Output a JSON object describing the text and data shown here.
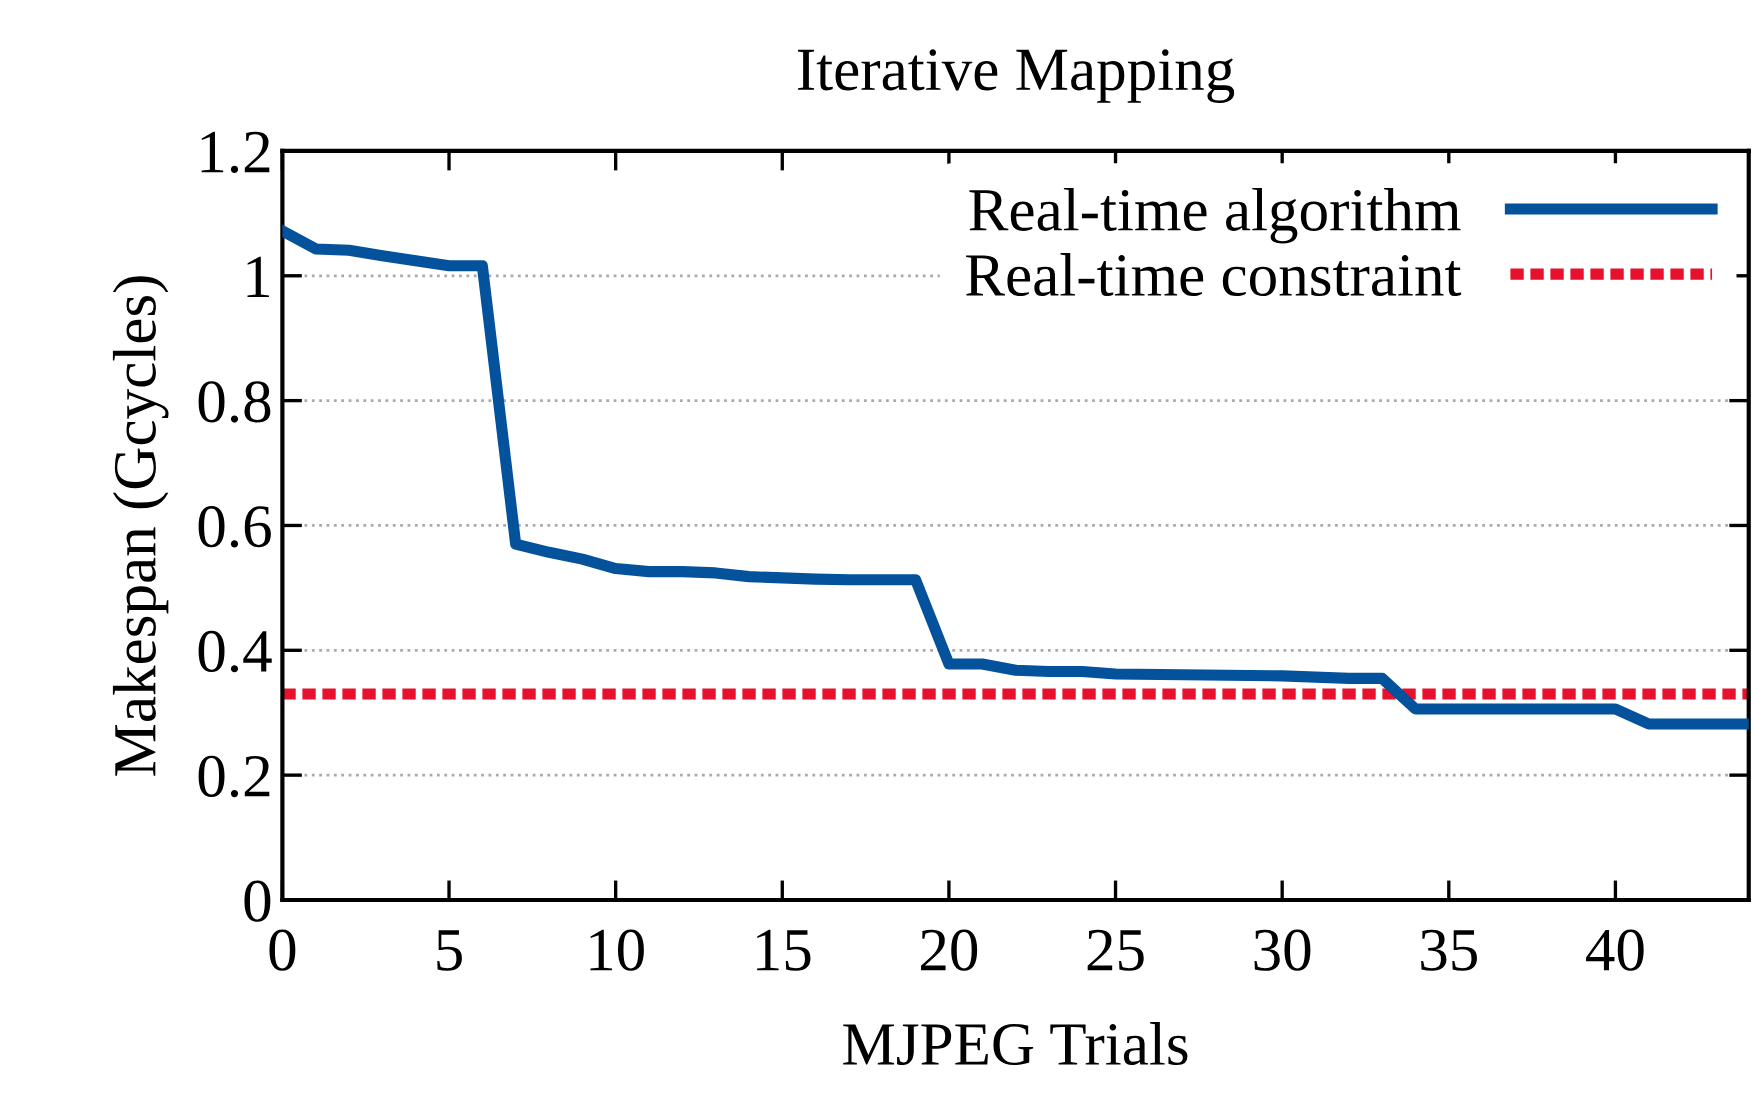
{
  "chart_data": {
    "type": "line",
    "title": "Iterative Mapping",
    "xlabel": "MJPEG Trials",
    "ylabel": "Makespan (Gcycles)",
    "xlim": [
      0,
      44
    ],
    "xticks": [
      0,
      5,
      10,
      15,
      20,
      25,
      30,
      35,
      40
    ],
    "ylim": [
      0,
      1.2
    ],
    "yticks": [
      0,
      0.2,
      0.4,
      0.6,
      0.8,
      1,
      1.2
    ],
    "grid": "y",
    "legend": "top right",
    "marker": "none",
    "line_style": "solid",
    "x": [
      0,
      1,
      2,
      3,
      4,
      5,
      6,
      7,
      8,
      9,
      10,
      11,
      12,
      13,
      14,
      15,
      16,
      17,
      18,
      19,
      20,
      21,
      22,
      23,
      24,
      25,
      30,
      32,
      33,
      34,
      40,
      41,
      44
    ],
    "series": [
      {
        "name": "Real-time algorithm",
        "color": "#03529b",
        "values": [
          1.072,
          1.043,
          1.041,
          1.032,
          1.024,
          1.016,
          1.016,
          0.57,
          0.557,
          0.546,
          0.531,
          0.526,
          0.526,
          0.524,
          0.518,
          0.516,
          0.514,
          0.513,
          0.513,
          0.513,
          0.378,
          0.378,
          0.368,
          0.366,
          0.366,
          0.362,
          0.359,
          0.355,
          0.355,
          0.306,
          0.306,
          0.282,
          0.282
        ]
      }
    ],
    "ref_lines": [
      {
        "axis": "y",
        "value": 0.33,
        "label": "Real-time constraint",
        "color": "#e8112d",
        "line_style": "dotted"
      }
    ]
  }
}
